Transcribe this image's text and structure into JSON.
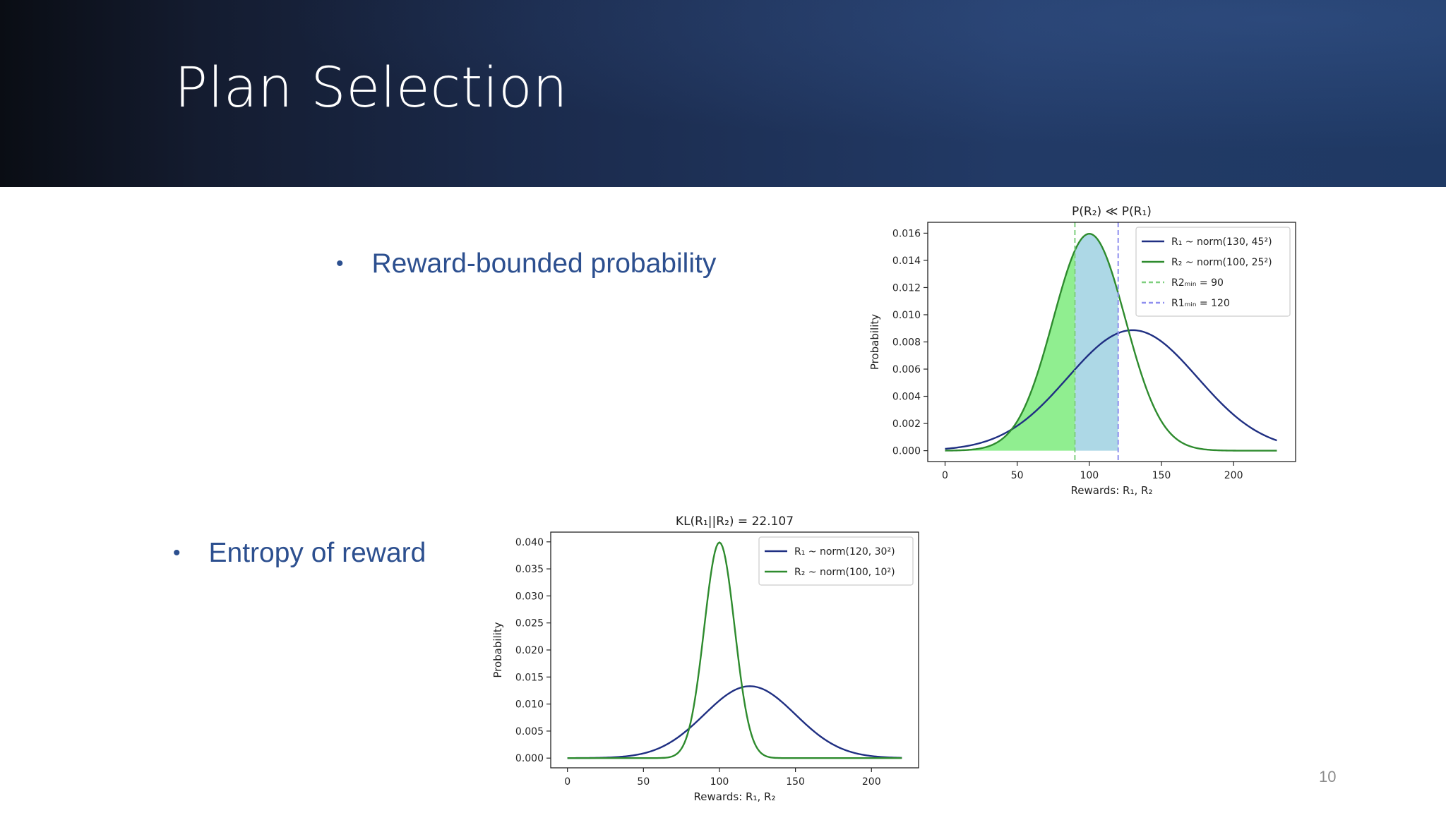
{
  "slide": {
    "title": "Plan Selection",
    "page_number": "10",
    "bullets": [
      {
        "text": "Reward-bounded probability"
      },
      {
        "text": "Entropy of reward"
      }
    ]
  },
  "colors": {
    "r1_line": "#1f2f82",
    "r2_line": "#2e8b2e",
    "r2_fill": "#90ee90",
    "r1_fill": "#add8e6",
    "r2_min_line": "#7fcf7f",
    "r1_min_line": "#8f8fef",
    "header_text": "#ffffff",
    "bullet_text": "#2c4f8f"
  },
  "chart_data": [
    {
      "type": "line",
      "title": "P(R₂) ≪ P(R₁)",
      "xlabel": "Rewards:  R₁,  R₂",
      "ylabel": "Probability",
      "xlim": [
        -12,
        243
      ],
      "ylim": [
        -0.0008,
        0.0168
      ],
      "xticks": [
        0,
        50,
        100,
        150,
        200
      ],
      "xtick_labels": [
        "0",
        "50",
        "100",
        "150",
        "200"
      ],
      "yticks": [
        0,
        0.002,
        0.004,
        0.006,
        0.008,
        0.01,
        0.012,
        0.014,
        0.016
      ],
      "ytick_labels": [
        "0.000",
        "0.002",
        "0.004",
        "0.006",
        "0.008",
        "0.010",
        "0.012",
        "0.014",
        "0.016"
      ],
      "x_range": [
        0,
        230
      ],
      "grid": false,
      "legend_position": "top-right",
      "series": [
        {
          "name": "R₁ ~  norm(130, 45²)",
          "dist": "normal",
          "mean": 130,
          "sd": 45
        },
        {
          "name": "R₂ ~  norm(100, 25²)",
          "dist": "normal",
          "mean": 100,
          "sd": 25
        }
      ],
      "vlines": [
        {
          "name": "R2ₘᵢₙ = 90",
          "x": 90
        },
        {
          "name": "R1ₘᵢₙ = 120",
          "x": 120
        }
      ],
      "shaded_regions": [
        {
          "series": "R₂",
          "from": 0,
          "to": 90
        },
        {
          "series": "R₂",
          "from": 90,
          "to": 120
        }
      ]
    },
    {
      "type": "line",
      "title": "KL(R₁||R₂) = 22.107",
      "xlabel": "Rewards:  R₁,  R₂",
      "ylabel": "Probability",
      "xlim": [
        -11,
        231
      ],
      "ylim": [
        -0.0018,
        0.0418
      ],
      "xticks": [
        0,
        50,
        100,
        150,
        200
      ],
      "xtick_labels": [
        "0",
        "50",
        "100",
        "150",
        "200"
      ],
      "yticks": [
        0,
        0.005,
        0.01,
        0.015,
        0.02,
        0.025,
        0.03,
        0.035,
        0.04
      ],
      "ytick_labels": [
        "0.000",
        "0.005",
        "0.010",
        "0.015",
        "0.020",
        "0.025",
        "0.030",
        "0.035",
        "0.040"
      ],
      "x_range": [
        0,
        220
      ],
      "grid": false,
      "legend_position": "top-right",
      "series": [
        {
          "name": "R₁ ~  norm(120, 30²)",
          "dist": "normal",
          "mean": 120,
          "sd": 30
        },
        {
          "name": "R₂ ~  norm(100, 10²)",
          "dist": "normal",
          "mean": 100,
          "sd": 10
        }
      ]
    }
  ]
}
